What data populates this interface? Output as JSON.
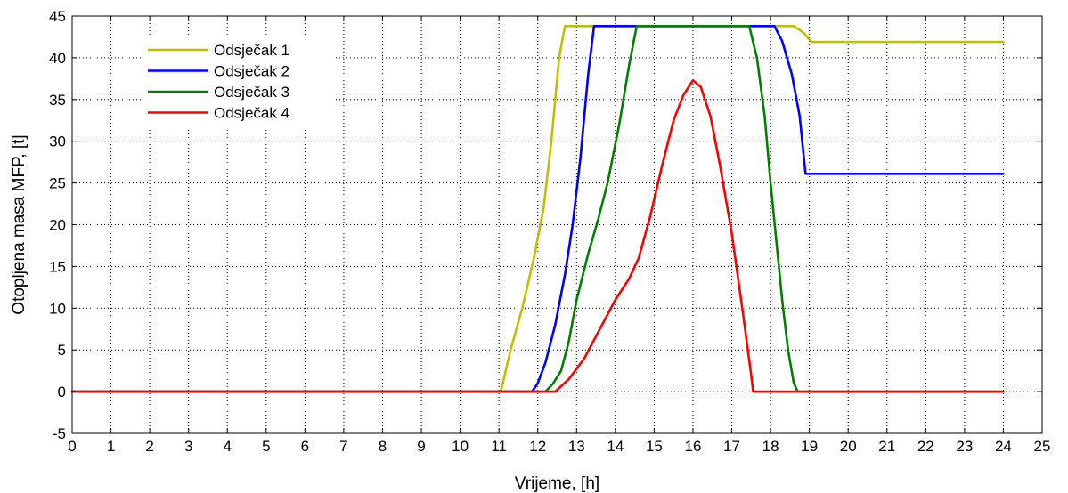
{
  "chart_data": {
    "type": "line",
    "xlabel": "Vrijeme, [h]",
    "ylabel": "Otopljena masa MFP, [t]",
    "xlim": [
      0,
      25
    ],
    "ylim": [
      -5,
      45
    ],
    "xticks": [
      "0",
      "1",
      "2",
      "3",
      "4",
      "5",
      "6",
      "7",
      "8",
      "9",
      "10",
      "11",
      "12",
      "13",
      "14",
      "15",
      "16",
      "17",
      "18",
      "19",
      "20",
      "21",
      "22",
      "23",
      "24",
      "25"
    ],
    "yticks": [
      "-5",
      "0",
      "5",
      "10",
      "15",
      "20",
      "25",
      "30",
      "35",
      "40",
      "45"
    ],
    "grid": true,
    "legend_position": "top-left",
    "series": [
      {
        "name": "Odsječak 1",
        "color": "#bfbf00",
        "points": [
          [
            0,
            0
          ],
          [
            11.05,
            0
          ],
          [
            11.3,
            5
          ],
          [
            11.6,
            10
          ],
          [
            11.9,
            16
          ],
          [
            12.15,
            22
          ],
          [
            12.35,
            30
          ],
          [
            12.55,
            40
          ],
          [
            12.7,
            43.8
          ],
          [
            18.6,
            43.8
          ],
          [
            18.85,
            43
          ],
          [
            19.05,
            41.9
          ],
          [
            24,
            41.9
          ]
        ]
      },
      {
        "name": "Odsječak 2",
        "color": "#0000ff",
        "points": [
          [
            0,
            0
          ],
          [
            11.85,
            0
          ],
          [
            12.0,
            1
          ],
          [
            12.2,
            3.5
          ],
          [
            12.45,
            8
          ],
          [
            12.7,
            14
          ],
          [
            12.9,
            20
          ],
          [
            13.1,
            28
          ],
          [
            13.3,
            38
          ],
          [
            13.45,
            43.8
          ],
          [
            18.1,
            43.8
          ],
          [
            18.3,
            42
          ],
          [
            18.55,
            38
          ],
          [
            18.75,
            33
          ],
          [
            18.9,
            26.1
          ],
          [
            24,
            26.1
          ]
        ]
      },
      {
        "name": "Odsječak 3",
        "color": "#008000",
        "points": [
          [
            0,
            0
          ],
          [
            12.2,
            0
          ],
          [
            12.4,
            1
          ],
          [
            12.6,
            2.5
          ],
          [
            12.8,
            6
          ],
          [
            13.0,
            11
          ],
          [
            13.3,
            16.5
          ],
          [
            13.55,
            20.5
          ],
          [
            13.8,
            25
          ],
          [
            14.1,
            32
          ],
          [
            14.35,
            39
          ],
          [
            14.55,
            43.8
          ],
          [
            17.45,
            43.8
          ],
          [
            17.65,
            40
          ],
          [
            17.85,
            33
          ],
          [
            18.0,
            25
          ],
          [
            18.15,
            18
          ],
          [
            18.3,
            11
          ],
          [
            18.45,
            5
          ],
          [
            18.6,
            1
          ],
          [
            18.7,
            0
          ],
          [
            24,
            0
          ]
        ]
      },
      {
        "name": "Odsječak 4",
        "color": "#ff0000",
        "points": [
          [
            0,
            0
          ],
          [
            12.45,
            0
          ],
          [
            12.8,
            1.5
          ],
          [
            13.2,
            4
          ],
          [
            13.6,
            7.5
          ],
          [
            14.0,
            11
          ],
          [
            14.35,
            13.5
          ],
          [
            14.6,
            16
          ],
          [
            14.9,
            21
          ],
          [
            15.2,
            27
          ],
          [
            15.5,
            32.5
          ],
          [
            15.75,
            35.5
          ],
          [
            16.0,
            37.3
          ],
          [
            16.2,
            36.5
          ],
          [
            16.45,
            33
          ],
          [
            16.7,
            27
          ],
          [
            17.0,
            19
          ],
          [
            17.3,
            9
          ],
          [
            17.5,
            2
          ],
          [
            17.55,
            0
          ],
          [
            24,
            0
          ]
        ]
      }
    ]
  }
}
